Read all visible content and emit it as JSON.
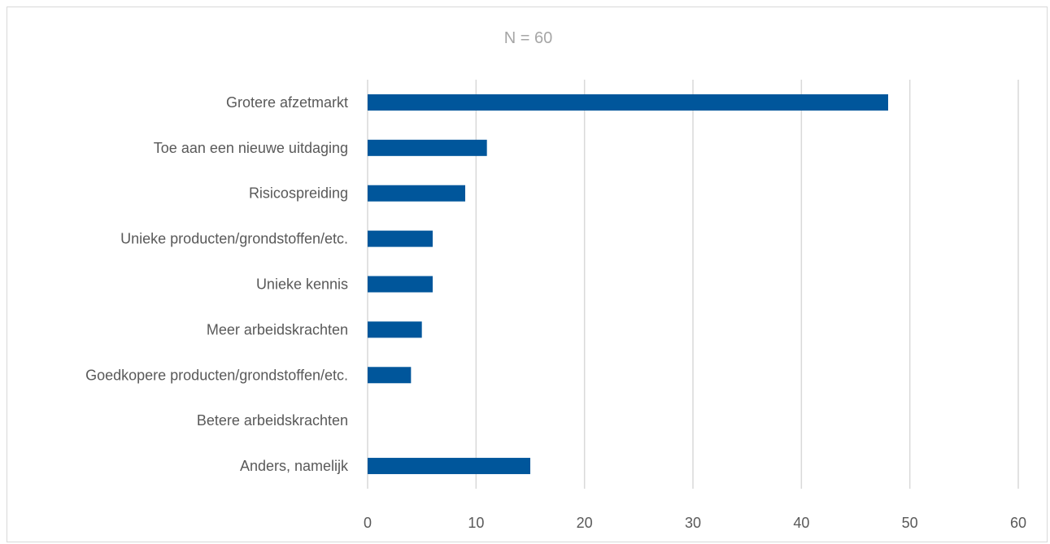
{
  "chart_data": {
    "type": "bar",
    "orientation": "horizontal",
    "title": "N = 60",
    "categories": [
      "Grotere afzetmarkt",
      "Toe aan een nieuwe uitdaging",
      "Risicospreiding",
      "Unieke producten/grondstoffen/etc.",
      "Unieke kennis",
      "Meer arbeidskrachten",
      "Goedkopere producten/grondstoffen/etc.",
      "Betere arbeidskrachten",
      "Anders, namelijk"
    ],
    "values": [
      48,
      11,
      9,
      6,
      6,
      5,
      4,
      0,
      15
    ],
    "xlim": [
      0,
      60
    ],
    "xticks": [
      "0",
      "10",
      "20",
      "30",
      "40",
      "50",
      "60"
    ],
    "grid": true,
    "bar_color": "#00569b",
    "grid_color": "#d9d9d9"
  }
}
